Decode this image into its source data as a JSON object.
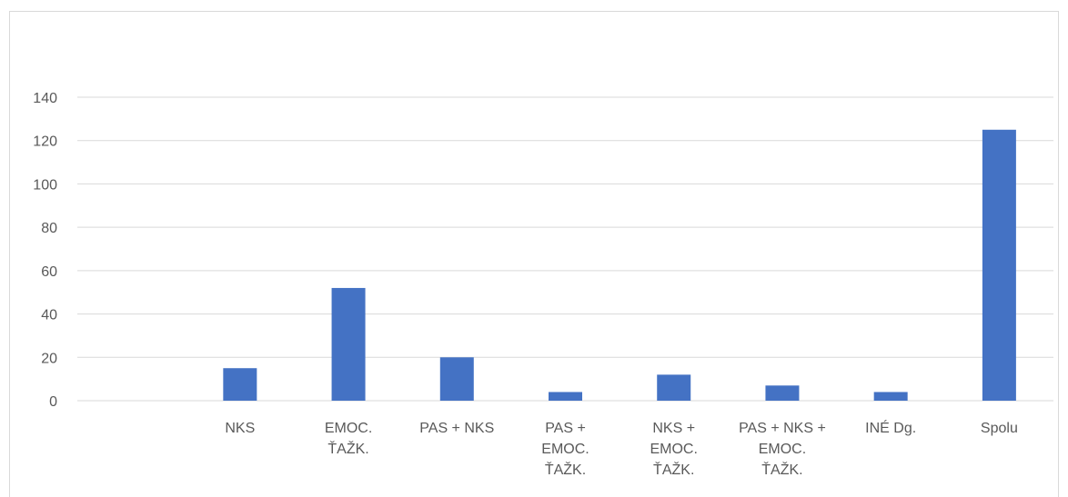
{
  "chart_data": {
    "type": "bar",
    "title": "",
    "xlabel": "",
    "ylabel": "",
    "ylim": [
      0,
      140
    ],
    "yticks": [
      0,
      20,
      40,
      60,
      80,
      100,
      120,
      140
    ],
    "grid": true,
    "legend": "none",
    "bar_color": "#4472c4",
    "categories": [
      "",
      "NKS",
      "EMOC. ŤAŽK.",
      "PAS + NKS",
      "PAS + EMOC. ŤAŽK.",
      "NKS + EMOC. ŤAŽK.",
      "PAS + NKS + EMOC. ŤAŽK.",
      "INÉ Dg.",
      "Spolu"
    ],
    "category_lines": [
      [],
      [
        "NKS"
      ],
      [
        "EMOC.",
        "ŤAŽK."
      ],
      [
        "PAS + NKS"
      ],
      [
        "PAS +",
        "EMOC.",
        "ŤAŽK."
      ],
      [
        "NKS +",
        "EMOC.",
        "ŤAŽK."
      ],
      [
        "PAS + NKS +",
        "EMOC.",
        "ŤAŽK."
      ],
      [
        "INÉ Dg."
      ],
      [
        "Spolu"
      ]
    ],
    "values": [
      0,
      15,
      52,
      20,
      4,
      12,
      7,
      4,
      125
    ]
  }
}
